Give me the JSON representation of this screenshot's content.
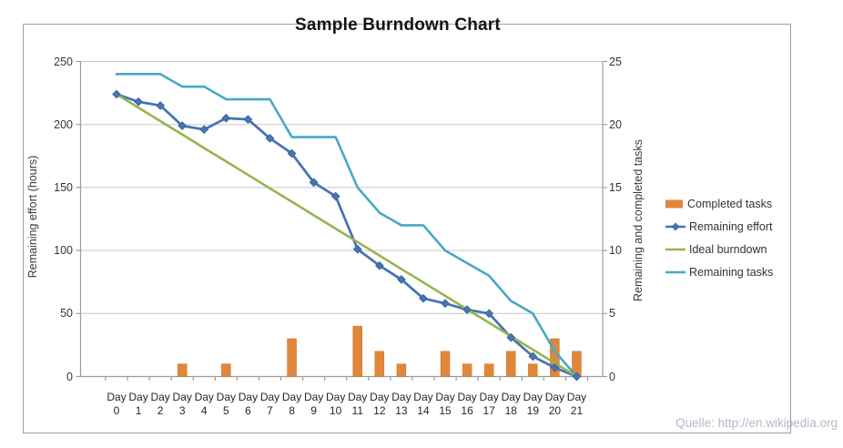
{
  "chart_data": {
    "type": "combo-bar-line",
    "title": "Sample Burndown Chart",
    "categories": [
      "Day 0",
      "Day 1",
      "Day 2",
      "Day 3",
      "Day 4",
      "Day 5",
      "Day 6",
      "Day 7",
      "Day 8",
      "Day 9",
      "Day 10",
      "Day 11",
      "Day 12",
      "Day 13",
      "Day 14",
      "Day 15",
      "Day 16",
      "Day 17",
      "Day 18",
      "Day 19",
      "Day 20",
      "Day 21"
    ],
    "y_left": {
      "label": "Remaining effort (hours)",
      "ticks": [
        0,
        50,
        100,
        150,
        200,
        250
      ],
      "range": [
        0,
        250
      ]
    },
    "y_right": {
      "label": "Remaining and  completed tasks",
      "ticks": [
        0,
        5,
        10,
        15,
        20,
        25
      ],
      "range": [
        0,
        25
      ]
    },
    "grid": "horizontal",
    "legend_position": "right",
    "series": [
      {
        "name": "Completed tasks",
        "type": "bar",
        "axis": "right",
        "color": "#e0873b",
        "values": [
          0,
          0,
          0,
          1,
          0,
          1,
          0,
          0,
          3,
          0,
          0,
          4,
          2,
          1,
          0,
          2,
          1,
          1,
          2,
          1,
          3,
          2
        ]
      },
      {
        "name": "Remaining effort",
        "type": "line-diamond",
        "axis": "left",
        "color": "#4575b4",
        "values": [
          224,
          218,
          215,
          199,
          196,
          205,
          204,
          189,
          177,
          154,
          143,
          101,
          88,
          77,
          62,
          58,
          53,
          50,
          31,
          16,
          7,
          0
        ]
      },
      {
        "name": "Ideal burndown",
        "type": "line",
        "axis": "left",
        "color": "#95b453",
        "values": [
          224,
          213.3,
          202.7,
          192,
          181.3,
          170.7,
          160,
          149.3,
          138.7,
          128,
          117.3,
          106.7,
          96,
          85.3,
          74.7,
          64,
          53.3,
          42.7,
          32,
          21.3,
          10.7,
          0
        ]
      },
      {
        "name": "Remaining tasks",
        "type": "line",
        "axis": "right",
        "color": "#46a9c6",
        "values": [
          24,
          24,
          24,
          23,
          23,
          22,
          22,
          22,
          19,
          19,
          19,
          15,
          13,
          12,
          12,
          10,
          9,
          8,
          6,
          5,
          2,
          0
        ]
      }
    ],
    "colors": {
      "gridline": "#c8c8c8",
      "axis_line": "#9c9c9c",
      "tick_text": "#363636",
      "title_text": "#141414"
    }
  },
  "source_note": "Quelle: http://en.wikipedia.org"
}
